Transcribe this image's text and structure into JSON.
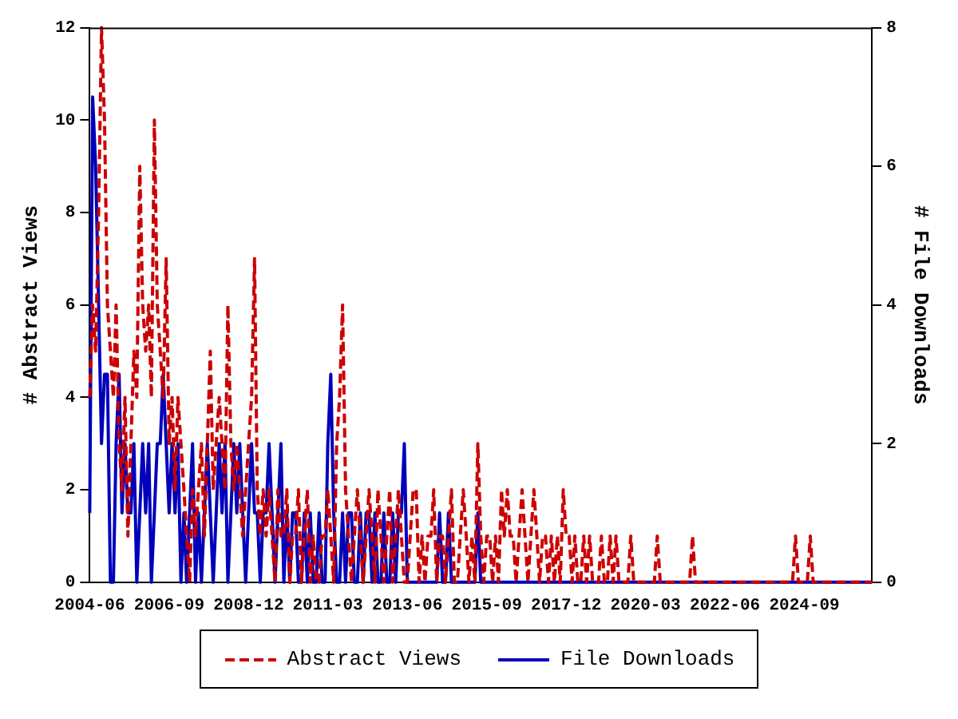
{
  "chart_data": {
    "type": "line",
    "x": [
      "2004-06",
      "2004-07",
      "2004-08",
      "2004-09",
      "2004-10",
      "2004-11",
      "2004-12",
      "2005-01",
      "2005-02",
      "2005-03",
      "2005-04",
      "2005-05",
      "2005-06",
      "2005-07",
      "2005-08",
      "2005-09",
      "2005-10",
      "2005-11",
      "2005-12",
      "2006-01",
      "2006-02",
      "2006-03",
      "2006-04",
      "2006-05",
      "2006-06",
      "2006-07",
      "2006-08",
      "2006-09",
      "2006-10",
      "2006-11",
      "2006-12",
      "2007-01",
      "2007-02",
      "2007-03",
      "2007-04",
      "2007-05",
      "2007-06",
      "2007-07",
      "2007-08",
      "2007-09",
      "2007-10",
      "2007-11",
      "2007-12",
      "2008-01",
      "2008-02",
      "2008-03",
      "2008-04",
      "2008-05",
      "2008-06",
      "2008-07",
      "2008-08",
      "2008-09",
      "2008-10",
      "2008-11",
      "2008-12",
      "2009-01",
      "2009-02",
      "2009-03",
      "2009-04",
      "2009-05",
      "2009-06",
      "2009-07",
      "2009-08",
      "2009-09",
      "2009-10",
      "2009-11",
      "2009-12",
      "2010-01",
      "2010-02",
      "2010-03",
      "2010-04",
      "2010-05",
      "2010-06",
      "2010-07",
      "2010-08",
      "2010-09",
      "2010-10",
      "2010-11",
      "2010-12",
      "2011-01",
      "2011-02",
      "2011-03",
      "2011-04",
      "2011-05",
      "2011-06",
      "2011-07",
      "2011-08",
      "2011-09",
      "2011-10",
      "2011-11",
      "2011-12",
      "2012-01",
      "2012-02",
      "2012-03",
      "2012-04",
      "2012-05",
      "2012-06",
      "2012-07",
      "2012-08",
      "2012-09",
      "2012-10",
      "2012-11",
      "2012-12",
      "2013-01",
      "2013-02",
      "2013-03",
      "2013-04",
      "2013-05",
      "2013-06",
      "2013-07",
      "2013-08",
      "2013-09",
      "2013-10",
      "2013-11",
      "2013-12",
      "2014-01",
      "2014-02",
      "2014-03",
      "2014-04",
      "2014-05",
      "2014-06",
      "2014-07",
      "2014-08",
      "2014-09",
      "2014-10",
      "2014-11",
      "2014-12",
      "2015-01",
      "2015-02",
      "2015-03",
      "2015-04",
      "2015-05",
      "2015-06",
      "2015-07",
      "2015-08",
      "2015-09",
      "2015-10",
      "2015-11",
      "2015-12",
      "2016-01",
      "2016-02",
      "2016-03",
      "2016-04",
      "2016-05",
      "2016-06",
      "2016-07",
      "2016-08",
      "2016-09",
      "2016-10",
      "2016-11",
      "2016-12",
      "2017-01",
      "2017-02",
      "2017-03",
      "2017-04",
      "2017-05",
      "2017-06",
      "2017-07",
      "2017-08",
      "2017-09",
      "2017-10",
      "2017-11",
      "2017-12",
      "2018-01",
      "2018-02",
      "2018-03",
      "2018-04",
      "2018-05",
      "2018-06",
      "2018-07",
      "2018-08",
      "2018-09",
      "2018-10",
      "2018-11",
      "2018-12",
      "2019-01",
      "2019-02",
      "2019-03",
      "2019-04",
      "2019-05",
      "2019-06",
      "2019-07",
      "2019-08",
      "2019-09",
      "2019-10",
      "2019-11",
      "2019-12",
      "2020-01",
      "2020-02",
      "2020-03",
      "2020-04",
      "2020-05",
      "2020-06",
      "2020-07",
      "2020-08",
      "2020-09",
      "2020-10",
      "2020-11",
      "2020-12",
      "2021-01",
      "2021-02",
      "2021-03",
      "2021-04",
      "2021-05",
      "2021-06",
      "2021-07",
      "2021-08",
      "2021-09",
      "2021-10",
      "2021-11",
      "2021-12",
      "2022-01",
      "2022-02",
      "2022-03",
      "2022-04",
      "2022-05",
      "2022-06",
      "2022-07",
      "2022-08",
      "2022-09",
      "2022-10",
      "2022-11",
      "2022-12",
      "2023-01",
      "2023-02",
      "2023-03",
      "2023-04",
      "2023-05",
      "2023-06",
      "2023-07",
      "2023-08",
      "2023-09",
      "2023-10",
      "2023-11",
      "2023-12",
      "2024-01",
      "2024-02",
      "2024-03",
      "2024-04",
      "2024-05",
      "2024-06",
      "2024-07",
      "2024-08",
      "2024-09",
      "2024-10",
      "2024-11",
      "2024-12",
      "2025-01",
      "2025-02",
      "2025-03",
      "2025-04",
      "2025-05",
      "2025-06",
      "2025-07",
      "2025-08",
      "2025-09",
      "2025-10",
      "2025-11",
      "2025-12",
      "2026-01",
      "2026-02",
      "2026-03",
      "2026-04",
      "2026-05",
      "2026-06",
      "2026-07",
      "2026-08"
    ],
    "series": [
      {
        "name": "Abstract Views",
        "color": "#cc0000",
        "line_style": "dashed",
        "values": [
          4,
          6,
          5,
          8,
          12,
          10,
          6,
          5,
          4,
          6,
          3,
          2,
          4,
          1,
          3,
          5,
          4,
          9,
          6,
          5,
          6,
          4,
          10,
          6,
          5,
          4,
          7,
          3,
          4,
          2,
          4,
          3,
          2,
          1,
          0,
          2,
          1,
          2,
          3,
          1,
          3,
          5,
          2,
          3,
          4,
          3,
          2,
          6,
          3,
          2,
          3,
          2,
          1,
          2,
          3,
          4,
          7,
          2,
          1,
          2,
          1,
          2,
          1,
          0,
          2,
          1,
          1,
          2,
          0,
          1,
          1,
          2,
          0,
          1,
          2,
          0,
          1,
          0,
          0,
          1,
          1,
          2,
          1,
          0,
          3,
          4,
          6,
          2,
          1,
          0,
          1,
          2,
          1,
          0,
          1,
          2,
          1,
          0,
          2,
          1,
          0,
          1,
          2,
          0,
          1,
          2,
          1,
          0,
          0,
          1,
          2,
          2,
          0,
          1,
          0,
          1,
          1,
          2,
          0,
          1,
          1,
          0,
          1,
          2,
          0,
          0,
          1,
          2,
          1,
          0,
          1,
          0,
          3,
          1,
          0,
          1,
          1,
          0,
          1,
          0,
          2,
          1,
          2,
          1,
          1,
          0,
          1,
          2,
          1,
          0,
          1,
          2,
          1,
          0,
          1,
          1,
          0,
          1,
          0,
          1,
          0,
          2,
          1,
          1,
          0,
          1,
          0,
          0,
          1,
          0,
          1,
          0,
          0,
          0,
          1,
          0,
          0,
          1,
          0,
          1,
          0,
          0,
          0,
          0,
          1,
          0,
          0,
          0,
          0,
          0,
          0,
          0,
          0,
          1,
          0,
          0,
          0,
          0,
          0,
          0,
          0,
          0,
          0,
          0,
          0,
          1,
          0,
          0,
          0,
          0,
          0,
          0,
          0,
          0,
          0,
          0,
          0,
          0,
          0,
          0,
          0,
          0,
          0,
          0,
          0,
          0,
          0,
          0,
          0,
          0,
          0,
          0,
          0,
          0,
          0,
          0,
          0,
          0,
          0,
          0,
          1,
          0,
          0,
          0,
          0,
          1,
          0,
          0,
          0,
          0,
          0,
          0,
          0,
          0,
          0,
          0,
          0,
          0,
          0,
          0,
          0,
          0,
          0,
          0,
          0,
          0,
          0
        ]
      },
      {
        "name": "File Downloads",
        "color": "#0000bb",
        "axis": "y2",
        "line_style": "solid",
        "values": [
          1,
          7,
          6,
          4,
          2,
          3,
          3,
          0,
          0,
          2,
          3,
          1,
          2,
          1,
          1,
          2,
          0,
          1,
          2,
          1,
          2,
          0,
          1,
          2,
          2,
          3,
          2,
          1,
          2,
          1,
          2,
          0,
          1,
          0,
          1,
          2,
          0,
          1,
          0,
          1,
          2,
          1,
          0,
          1,
          2,
          1,
          2,
          0,
          1,
          2,
          1,
          2,
          1,
          0,
          1,
          2,
          1,
          1,
          0,
          1,
          1,
          2,
          1,
          0,
          1,
          2,
          0,
          1,
          0,
          1,
          1,
          0,
          0,
          1,
          0,
          1,
          0,
          0,
          1,
          0,
          0,
          2,
          3,
          1,
          0,
          0,
          1,
          0,
          1,
          1,
          0,
          0,
          1,
          0,
          1,
          1,
          0,
          1,
          0,
          0,
          1,
          0,
          0,
          1,
          0,
          1,
          1,
          2,
          0,
          0,
          0,
          0,
          0,
          0,
          0,
          0,
          0,
          0,
          0,
          1,
          0,
          0,
          1,
          0,
          0,
          0,
          0,
          0,
          0,
          0,
          0,
          0,
          1,
          0,
          0,
          0,
          0,
          0,
          0,
          0,
          0,
          0,
          0,
          0,
          0,
          0,
          0,
          0,
          0,
          0,
          0,
          0,
          0,
          0,
          0,
          0,
          0,
          0,
          0,
          0,
          0,
          0,
          0,
          0,
          0,
          0,
          0,
          0,
          0,
          0,
          0,
          0,
          0,
          0,
          0,
          0,
          0,
          0,
          0,
          0,
          0,
          0,
          0,
          0,
          0,
          0,
          0,
          0,
          0,
          0,
          0,
          0,
          0,
          0,
          0,
          0,
          0,
          0,
          0,
          0,
          0,
          0,
          0,
          0,
          0,
          0,
          0,
          0,
          0,
          0,
          0,
          0,
          0,
          0,
          0,
          0,
          0,
          0,
          0,
          0,
          0,
          0,
          0,
          0,
          0,
          0,
          0,
          0,
          0,
          0,
          0,
          0,
          0,
          0,
          0,
          0,
          0,
          0,
          0,
          0,
          0,
          0,
          0,
          0,
          0,
          0,
          0,
          0,
          0,
          0,
          0,
          0,
          0,
          0,
          0,
          0,
          0,
          0,
          0,
          0,
          0,
          0,
          0,
          0,
          0,
          0,
          0
        ]
      }
    ],
    "xlim": [
      "2004-06",
      "2026-08"
    ],
    "xticks": [
      "2004-06",
      "2006-09",
      "2008-12",
      "2011-03",
      "2013-06",
      "2015-09",
      "2017-12",
      "2020-03",
      "2022-06",
      "2024-09"
    ],
    "ylabel": "# Abstract Views",
    "y2label": "# File Downloads",
    "ylim": [
      0,
      12
    ],
    "yticks": [
      0,
      2,
      4,
      6,
      8,
      10,
      12
    ],
    "y2lim": [
      0,
      8
    ],
    "y2ticks": [
      0,
      2,
      4,
      6,
      8
    ],
    "marker": "none",
    "grid": false,
    "legend": "bottom"
  }
}
